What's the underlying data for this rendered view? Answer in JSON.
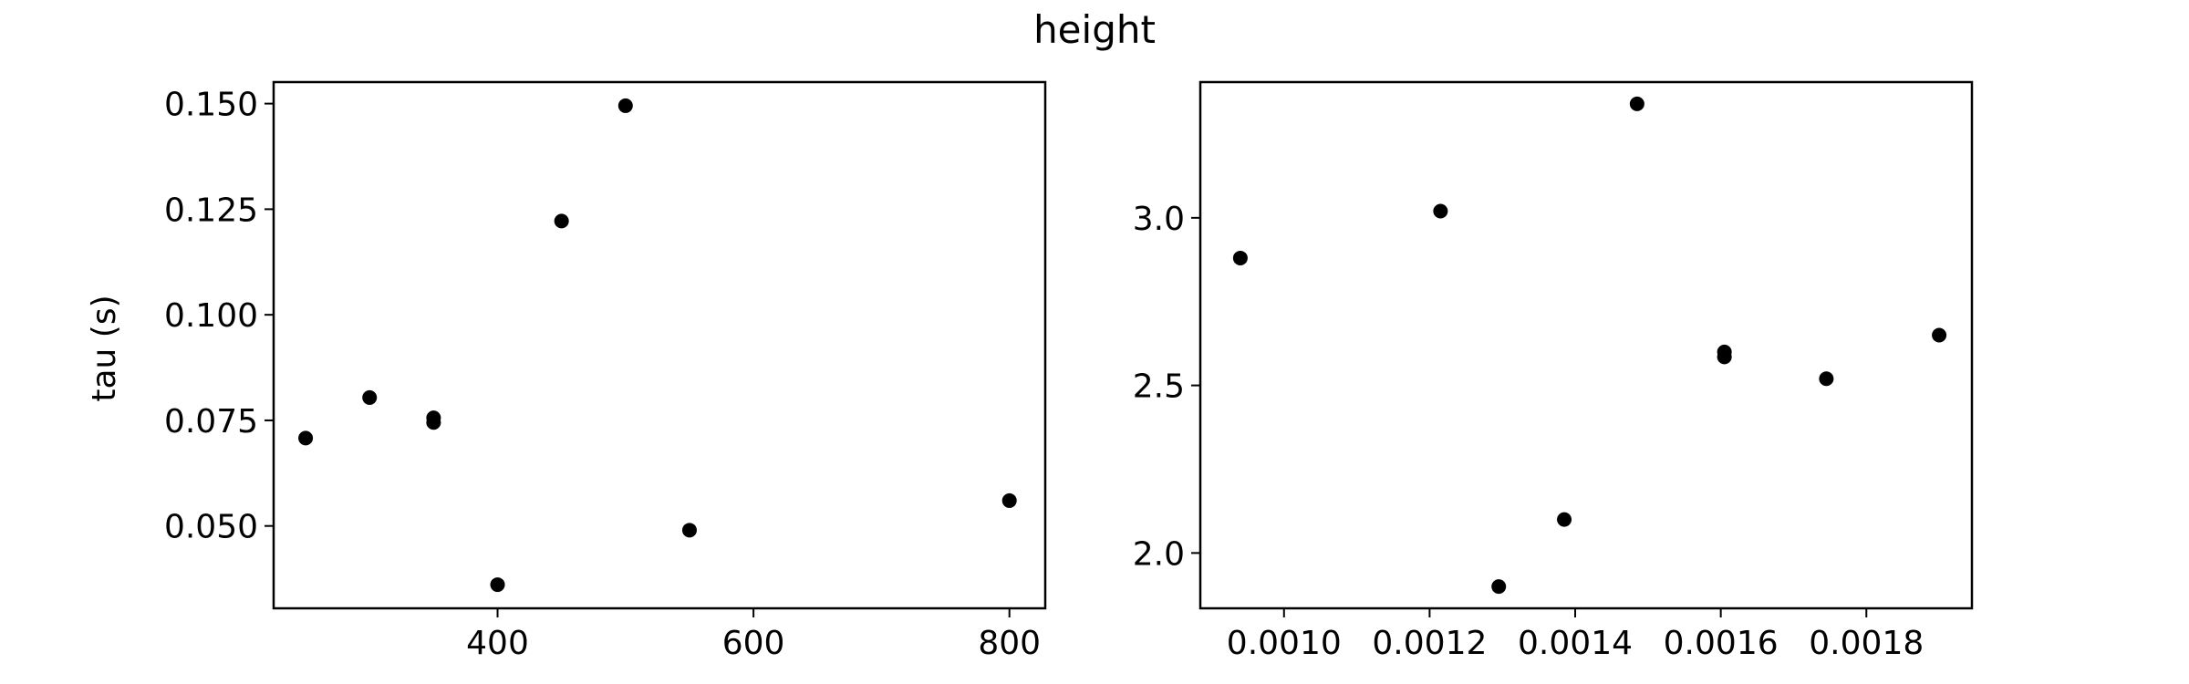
{
  "figure": {
    "title": "height",
    "background": "#ffffff",
    "point_color": "#000000"
  },
  "chart_data": [
    {
      "type": "scatter",
      "title": "",
      "xlabel": "",
      "ylabel": "tau (s)",
      "xlim": [
        225,
        828
      ],
      "ylim": [
        0.0305,
        0.1551
      ],
      "xticks": [
        400,
        600,
        800
      ],
      "xtick_labels": [
        "400",
        "600",
        "800"
      ],
      "yticks": [
        0.05,
        0.075,
        0.1,
        0.125,
        0.15
      ],
      "ytick_labels": [
        "0.050",
        "0.075",
        "0.100",
        "0.125",
        "0.150"
      ],
      "grid": false,
      "series": [
        {
          "x": [
            250,
            300,
            350,
            350,
            400,
            450,
            500,
            550,
            800
          ],
          "y": [
            0.0708,
            0.0804,
            0.0756,
            0.0745,
            0.0361,
            0.1222,
            0.1495,
            0.049,
            0.056
          ]
        }
      ]
    },
    {
      "type": "scatter",
      "title": "",
      "xlabel": "",
      "ylabel": "",
      "xlim": [
        0.000885,
        0.001945
      ],
      "ylim": [
        1.835,
        3.405
      ],
      "xticks": [
        0.001,
        0.0012,
        0.0014,
        0.0016,
        0.0018
      ],
      "xtick_labels": [
        "0.0010",
        "0.0012",
        "0.0014",
        "0.0016",
        "0.0018"
      ],
      "yticks": [
        2.0,
        2.5,
        3.0
      ],
      "ytick_labels": [
        "2.0",
        "2.5",
        "3.0"
      ],
      "grid": false,
      "series": [
        {
          "x": [
            0.00094,
            0.001215,
            0.001295,
            0.001385,
            0.001485,
            0.001605,
            0.001605,
            0.001745,
            0.0019
          ],
          "y": [
            2.88,
            3.02,
            1.9,
            2.1,
            3.34,
            2.6,
            2.585,
            2.52,
            2.65
          ]
        }
      ]
    }
  ]
}
